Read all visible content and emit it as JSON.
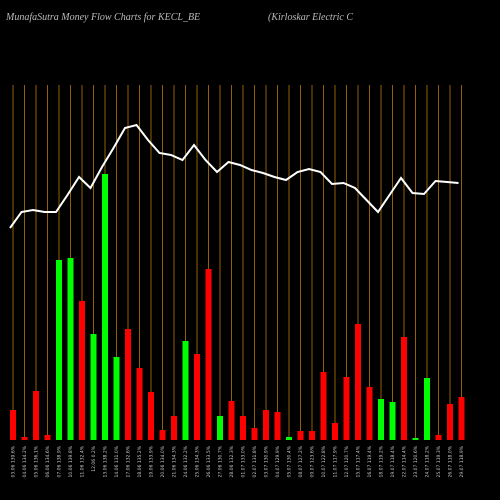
{
  "chart_data": {
    "type": "bar",
    "title": "MunafaSutra  Money Flow  Charts for KECL_BE",
    "subtitle": "(Kirloskar Electric C",
    "categories": [
      "03.06 139.6%",
      "04.06 134.2%",
      "05.06 136.1%",
      "06.06 134.6%",
      "07.06 138.9%",
      "10.06 139.8%",
      "11.06 132.4%",
      "12.06 0.2%",
      "13.06 138.2%",
      "14.06 131.0%",
      "17.06 132.6%",
      "18.06 135.2%",
      "19.06 133.9%",
      "20.06 134.0%",
      "21.06 134.3%",
      "24.06 132.2%",
      "25.06 134.3%",
      "26.06 133.5%",
      "27.06 130.7%",
      "28.06 132.3%",
      "01.07 133.0%",
      "02.07 131.8%",
      "03.07 130.9%",
      "04.07 129.9%",
      "05.07 130.4%",
      "08.07 127.2%",
      "09.07 123.6%",
      "10.07 122.8%",
      "11.07 117.9%",
      "12.07 120.7%",
      "15.07 117.4%",
      "16.07 119.4%",
      "18.07 119.2%",
      "19.07 118.4%",
      "22.07 114.4%",
      "23.07 120.6%",
      "24.07 118.2%",
      "25.07 119.3%",
      "26.07 118.0%",
      "29.07 118.9%"
    ],
    "values": [
      30,
      3,
      49,
      5,
      180,
      182,
      139,
      106,
      266,
      83,
      111,
      72,
      48,
      10,
      24,
      99,
      86,
      171,
      24,
      39,
      24,
      12,
      30,
      28,
      3,
      9,
      9,
      68,
      17,
      63,
      116,
      53,
      41,
      38,
      103,
      2,
      62,
      5,
      36,
      43
    ],
    "colors": [
      "#ff0000",
      "#ff0000",
      "#ff0000",
      "#ff0000",
      "#00ff00",
      "#00ff00",
      "#ff0000",
      "#00ff00",
      "#00ff00",
      "#00ff00",
      "#ff0000",
      "#ff0000",
      "#ff0000",
      "#ff0000",
      "#ff0000",
      "#00ff00",
      "#ff0000",
      "#ff0000",
      "#00ff00",
      "#ff0000",
      "#ff0000",
      "#ff0000",
      "#ff0000",
      "#ff0000",
      "#00ff00",
      "#ff0000",
      "#ff0000",
      "#ff0000",
      "#ff0000",
      "#ff0000",
      "#ff0000",
      "#ff0000",
      "#00ff00",
      "#00ff00",
      "#ff0000",
      "#00ff00",
      "#00ff00",
      "#ff0000",
      "#ff0000",
      "#ff0000"
    ],
    "line": {
      "color": "#ffffff",
      "values": [
        212,
        228,
        230,
        228,
        228,
        245,
        263,
        252,
        273,
        292,
        312,
        315,
        300,
        287,
        285,
        280,
        295,
        280,
        268,
        278,
        275,
        270,
        267,
        263,
        260,
        268,
        271,
        268,
        256,
        257,
        252,
        240,
        228,
        245,
        262,
        247,
        246,
        259,
        258,
        257
      ]
    },
    "ylim": [
      0,
      440
    ],
    "gridline_color": "#b8760a"
  }
}
